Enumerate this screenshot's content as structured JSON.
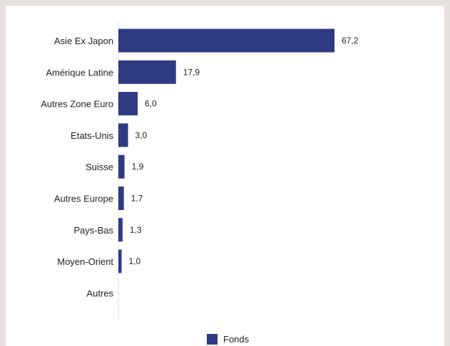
{
  "chart_data": {
    "type": "bar",
    "orientation": "horizontal",
    "categories": [
      "Asie Ex Japon",
      "Amérique Latine",
      "Autres Zone Euro",
      "Etats-Unis",
      "Suisse",
      "Autres Europe",
      "Pays-Bas",
      "Moyen-Orient",
      "Autres"
    ],
    "series": [
      {
        "name": "Fonds",
        "values": [
          67.2,
          17.9,
          6.0,
          3.0,
          1.9,
          1.7,
          1.3,
          1.0,
          null
        ],
        "labels": [
          "67,2",
          "17,9",
          "6,0",
          "3,0",
          "1,9",
          "1,7",
          "1,3",
          "1,0",
          ""
        ]
      }
    ],
    "xlim": [
      0,
      100
    ],
    "grid": false,
    "legend_position": "bottom-center",
    "bar_color": "#2e3a82",
    "background": "#ffffff",
    "frame_color": "#e6e1dc"
  }
}
